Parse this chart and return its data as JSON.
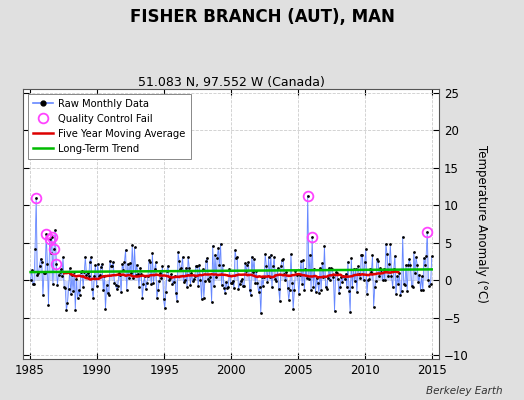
{
  "title": "FISHER BRANCH (AUT), MAN",
  "subtitle": "51.083 N, 97.552 W (Canada)",
  "ylabel": "Temperature Anomaly (°C)",
  "xlim": [
    1984.5,
    2015.5
  ],
  "ylim": [
    -10.5,
    25.5
  ],
  "yticks": [
    -10,
    -5,
    0,
    5,
    10,
    15,
    20,
    25
  ],
  "xticks": [
    1985,
    1990,
    1995,
    2000,
    2005,
    2010,
    2015
  ],
  "background_color": "#e0e0e0",
  "plot_bg_color": "#ffffff",
  "raw_line_color": "#6688ff",
  "raw_fill_color": "#aabbff",
  "raw_marker_color": "#000000",
  "ma_color": "#dd0000",
  "trend_color": "#00bb00",
  "qc_color": "#ff44ff",
  "watermark": "Berkeley Earth",
  "seed": 12345,
  "n_points": 360,
  "start_year": 1985.042,
  "end_year": 2014.958,
  "trend_intercept": 1.1,
  "trend_slope": 0.012,
  "noise_std": 1.9,
  "qc_indices": [
    5,
    14,
    17,
    19,
    21,
    23,
    248,
    252,
    355
  ],
  "qc_values": [
    11.0,
    6.2,
    5.5,
    5.8,
    4.2,
    2.2,
    11.3,
    5.8,
    6.5
  ]
}
